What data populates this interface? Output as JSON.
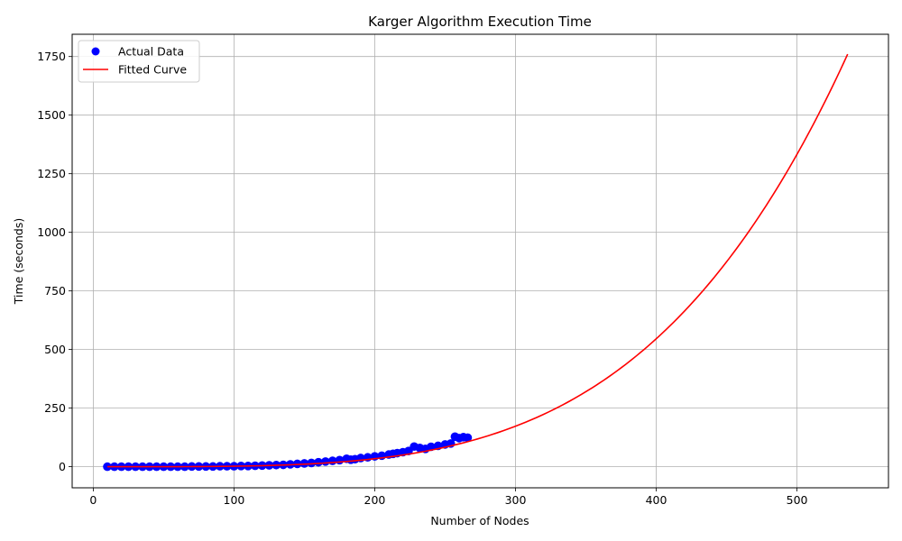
{
  "chart_data": {
    "type": "scatter",
    "title": "Karger Algorithm Execution Time",
    "xlabel": "Number of Nodes",
    "ylabel": "Time (seconds)",
    "xlim": [
      -15,
      565
    ],
    "ylim": [
      -90,
      1845
    ],
    "x_ticks": [
      0,
      100,
      200,
      300,
      400,
      500
    ],
    "y_ticks": [
      0,
      250,
      500,
      750,
      1000,
      1250,
      1500,
      1750
    ],
    "grid": true,
    "legend_position": "top-left",
    "series": [
      {
        "name": "Actual Data",
        "kind": "scatter",
        "color": "#0000ff",
        "x": [
          10,
          15,
          20,
          25,
          30,
          35,
          40,
          45,
          50,
          55,
          60,
          65,
          70,
          75,
          80,
          85,
          90,
          95,
          100,
          105,
          110,
          115,
          120,
          125,
          130,
          135,
          140,
          145,
          150,
          155,
          160,
          165,
          170,
          175,
          180,
          183,
          186,
          190,
          195,
          200,
          205,
          210,
          213,
          216,
          220,
          224,
          228,
          232,
          236,
          240,
          245,
          250,
          254,
          257,
          260,
          263,
          266
        ],
        "y": [
          0,
          0,
          0,
          0,
          0,
          0,
          0,
          0,
          0,
          0,
          0,
          0,
          1,
          1,
          1,
          1,
          2,
          2,
          2,
          3,
          3,
          4,
          5,
          6,
          7,
          8,
          10,
          12,
          14,
          16,
          19,
          22,
          25,
          28,
          34,
          30,
          32,
          37,
          40,
          44,
          47,
          52,
          55,
          58,
          62,
          67,
          86,
          80,
          76,
          85,
          89,
          95,
          99,
          128,
          122,
          126,
          124
        ]
      },
      {
        "name": "Fitted Curve",
        "kind": "line",
        "color": "#ff0000",
        "x_range": [
          10,
          536
        ],
        "model": "y = 1760 * (x / 536)^4",
        "coef": 1760,
        "x_ref": 536,
        "exponent": 4
      }
    ]
  }
}
